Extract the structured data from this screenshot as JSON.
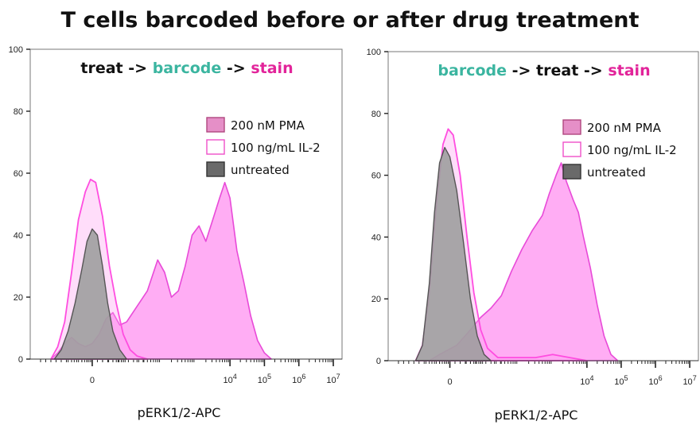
{
  "title": "T cells barcoded before or after drug treatment",
  "colors": {
    "black": "#111111",
    "teal": "#3bb5a0",
    "magenta": "#e2249a",
    "pma_fill": "#ff9ff2",
    "pma_stroke": "#e84ad8",
    "il2_stroke": "#ff4de0",
    "untreated_fill": "#9e9e9e",
    "untreated_stroke": "#555555"
  },
  "chart_data": [
    {
      "type": "area",
      "panel": "left",
      "sequence": [
        {
          "text": "treat",
          "color": "black"
        },
        {
          "text": " -> ",
          "color": "black"
        },
        {
          "text": "barcode",
          "color": "teal"
        },
        {
          "text": " -> ",
          "color": "black"
        },
        {
          "text": "stain",
          "color": "magenta"
        }
      ],
      "xlabel": "pERK1/2-APC",
      "x_ticks": [
        {
          "base": "0",
          "exp": "",
          "x": 0
        },
        {
          "base": "10",
          "exp": "4",
          "x": 4
        },
        {
          "base": "10",
          "exp": "5",
          "x": 5
        },
        {
          "base": "10",
          "exp": "6",
          "x": 6
        },
        {
          "base": "10",
          "exp": "7",
          "x": 7
        }
      ],
      "xlim": [
        -1.8,
        7.3
      ],
      "y_ticks": [
        "0",
        "20",
        "40",
        "60",
        "80",
        "100"
      ],
      "ylim": [
        0,
        100
      ],
      "legend": [
        {
          "label": "200 nM PMA",
          "style": "pma"
        },
        {
          "label": "100 ng/mL IL-2",
          "style": "il2"
        },
        {
          "label": "untreated",
          "style": "untreated"
        }
      ],
      "series": [
        {
          "name": "200 nM PMA",
          "style": "pma",
          "points": [
            [
              -1.2,
              0
            ],
            [
              -1.0,
              2
            ],
            [
              -0.8,
              5
            ],
            [
              -0.6,
              7
            ],
            [
              -0.4,
              5
            ],
            [
              -0.2,
              4
            ],
            [
              0,
              5
            ],
            [
              0.2,
              8
            ],
            [
              0.4,
              13
            ],
            [
              0.6,
              15
            ],
            [
              0.8,
              11
            ],
            [
              1.0,
              12
            ],
            [
              1.3,
              17
            ],
            [
              1.6,
              22
            ],
            [
              1.9,
              32
            ],
            [
              2.1,
              28
            ],
            [
              2.3,
              20
            ],
            [
              2.5,
              22
            ],
            [
              2.7,
              30
            ],
            [
              2.9,
              40
            ],
            [
              3.1,
              43
            ],
            [
              3.3,
              38
            ],
            [
              3.5,
              45
            ],
            [
              3.7,
              52
            ],
            [
              3.85,
              57
            ],
            [
              4.0,
              52
            ],
            [
              4.2,
              35
            ],
            [
              4.4,
              25
            ],
            [
              4.6,
              14
            ],
            [
              4.8,
              6
            ],
            [
              5.0,
              2
            ],
            [
              5.2,
              0
            ]
          ]
        },
        {
          "name": "100 ng/mL IL-2",
          "style": "il2",
          "points": [
            [
              -1.2,
              0
            ],
            [
              -1.0,
              4
            ],
            [
              -0.8,
              12
            ],
            [
              -0.6,
              28
            ],
            [
              -0.4,
              45
            ],
            [
              -0.2,
              54
            ],
            [
              -0.05,
              58
            ],
            [
              0.1,
              57
            ],
            [
              0.3,
              46
            ],
            [
              0.5,
              30
            ],
            [
              0.7,
              18
            ],
            [
              0.9,
              8
            ],
            [
              1.1,
              3
            ],
            [
              1.3,
              1
            ],
            [
              1.6,
              0
            ]
          ]
        },
        {
          "name": "untreated",
          "style": "untreated",
          "points": [
            [
              -1.1,
              0
            ],
            [
              -0.9,
              3
            ],
            [
              -0.7,
              9
            ],
            [
              -0.5,
              18
            ],
            [
              -0.3,
              29
            ],
            [
              -0.15,
              38
            ],
            [
              0,
              42
            ],
            [
              0.15,
              40
            ],
            [
              0.3,
              30
            ],
            [
              0.45,
              18
            ],
            [
              0.6,
              9
            ],
            [
              0.8,
              3
            ],
            [
              1.0,
              0
            ]
          ]
        }
      ]
    },
    {
      "type": "area",
      "panel": "right",
      "sequence": [
        {
          "text": "barcode",
          "color": "teal"
        },
        {
          "text": " -> ",
          "color": "black"
        },
        {
          "text": "treat",
          "color": "black"
        },
        {
          "text": " -> ",
          "color": "black"
        },
        {
          "text": "stain",
          "color": "magenta"
        }
      ],
      "xlabel": "pERK1/2-APC",
      "x_ticks": [
        {
          "base": "0",
          "exp": "",
          "x": 0
        },
        {
          "base": "10",
          "exp": "4",
          "x": 4
        },
        {
          "base": "10",
          "exp": "5",
          "x": 5
        },
        {
          "base": "10",
          "exp": "6",
          "x": 6
        },
        {
          "base": "10",
          "exp": "7",
          "x": 7
        }
      ],
      "xlim": [
        -1.8,
        7.3
      ],
      "y_ticks": [
        "0",
        "20",
        "40",
        "60",
        "80",
        "100"
      ],
      "ylim": [
        0,
        100
      ],
      "legend": [
        {
          "label": "200 nM PMA",
          "style": "pma"
        },
        {
          "label": "100 ng/mL IL-2",
          "style": "il2"
        },
        {
          "label": "untreated",
          "style": "untreated"
        }
      ],
      "series": [
        {
          "name": "200 nM PMA",
          "style": "pma",
          "points": [
            [
              -0.6,
              0
            ],
            [
              -0.3,
              2
            ],
            [
              0.2,
              5
            ],
            [
              0.6,
              10
            ],
            [
              0.9,
              14
            ],
            [
              1.2,
              17
            ],
            [
              1.5,
              21
            ],
            [
              1.8,
              29
            ],
            [
              2.1,
              36
            ],
            [
              2.4,
              42
            ],
            [
              2.7,
              47
            ],
            [
              2.9,
              54
            ],
            [
              3.1,
              60
            ],
            [
              3.25,
              64
            ],
            [
              3.4,
              58
            ],
            [
              3.6,
              52
            ],
            [
              3.75,
              48
            ],
            [
              3.9,
              40
            ],
            [
              4.1,
              30
            ],
            [
              4.3,
              18
            ],
            [
              4.5,
              8
            ],
            [
              4.7,
              2
            ],
            [
              4.9,
              0
            ]
          ]
        },
        {
          "name": "100 ng/mL IL-2",
          "style": "il2",
          "points": [
            [
              -1.0,
              0
            ],
            [
              -0.8,
              5
            ],
            [
              -0.6,
              22
            ],
            [
              -0.4,
              50
            ],
            [
              -0.2,
              70
            ],
            [
              -0.05,
              75
            ],
            [
              0.1,
              73
            ],
            [
              0.3,
              60
            ],
            [
              0.5,
              40
            ],
            [
              0.7,
              22
            ],
            [
              0.9,
              10
            ],
            [
              1.1,
              4
            ],
            [
              1.4,
              1
            ],
            [
              2.5,
              1
            ],
            [
              3.0,
              2
            ],
            [
              3.5,
              1
            ],
            [
              4.0,
              0
            ]
          ]
        },
        {
          "name": "untreated",
          "style": "untreated",
          "points": [
            [
              -1.0,
              0
            ],
            [
              -0.8,
              5
            ],
            [
              -0.6,
              25
            ],
            [
              -0.45,
              48
            ],
            [
              -0.3,
              64
            ],
            [
              -0.15,
              69
            ],
            [
              0,
              66
            ],
            [
              0.2,
              55
            ],
            [
              0.4,
              38
            ],
            [
              0.6,
              20
            ],
            [
              0.8,
              8
            ],
            [
              1.0,
              2
            ],
            [
              1.2,
              0
            ]
          ]
        }
      ]
    }
  ]
}
